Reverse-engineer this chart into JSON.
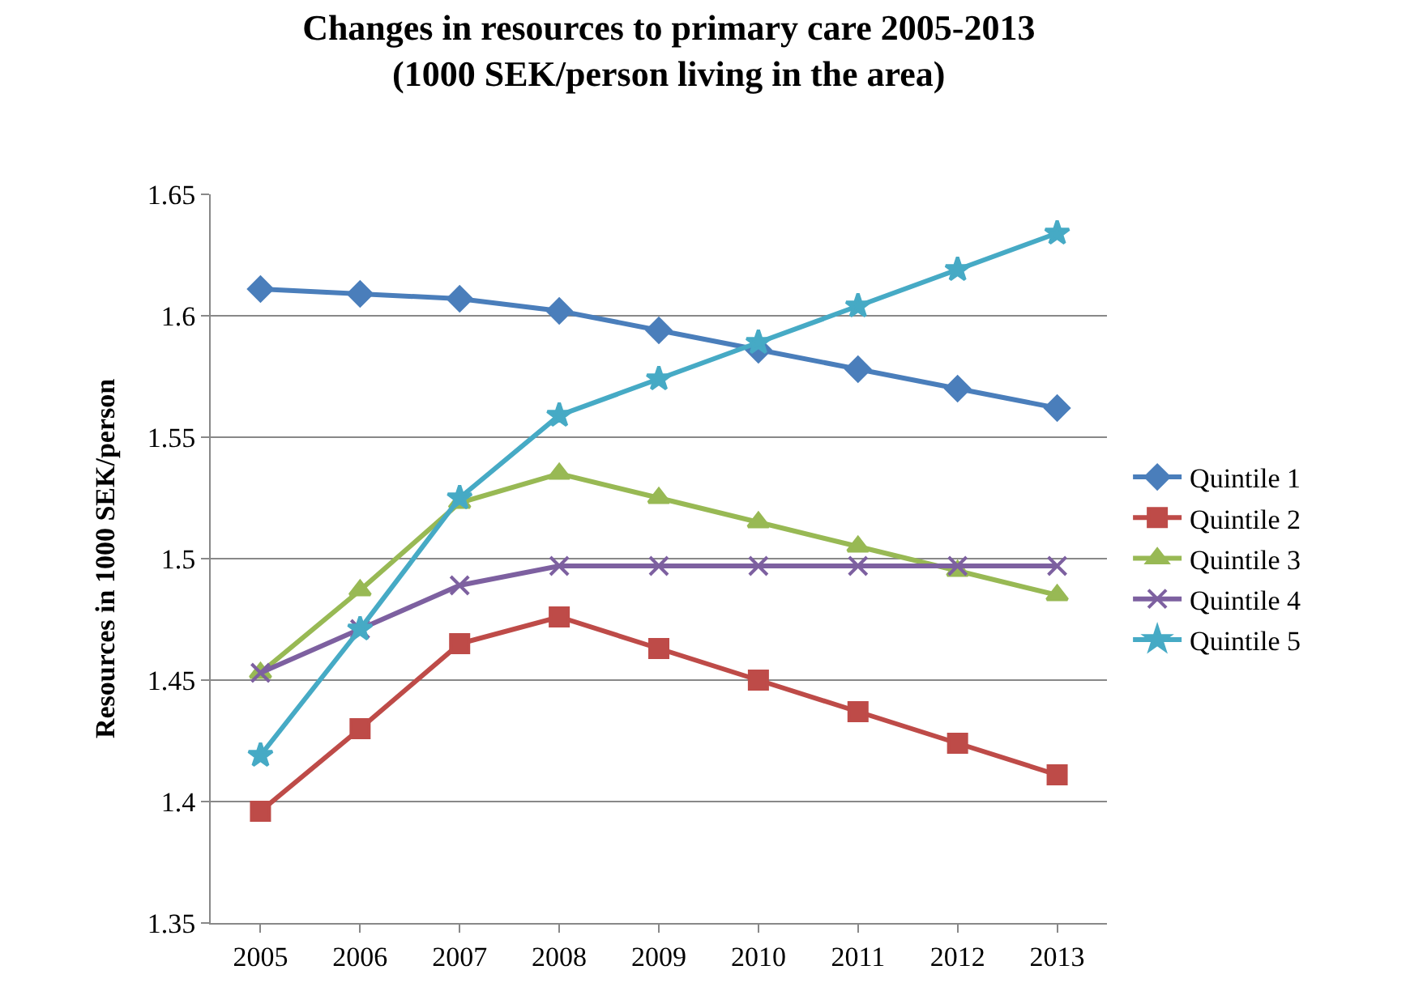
{
  "chart_data": {
    "type": "line",
    "title": "Changes in resources to primary care 2005-2013\n(1000 SEK/person living in the area)",
    "ylabel": "Resources in 1000 SEK/person",
    "categories": [
      "2005",
      "2006",
      "2007",
      "2008",
      "2009",
      "2010",
      "2011",
      "2012",
      "2013"
    ],
    "series": [
      {
        "name": "Quintile 1",
        "color": "#4a7ebb",
        "marker": "diamond",
        "values": [
          1.611,
          1.609,
          1.607,
          1.602,
          1.594,
          1.586,
          1.578,
          1.57,
          1.562
        ]
      },
      {
        "name": "Quintile 2",
        "color": "#be4b48",
        "marker": "square",
        "values": [
          1.396,
          1.43,
          1.465,
          1.476,
          1.463,
          1.45,
          1.437,
          1.424,
          1.411
        ]
      },
      {
        "name": "Quintile 3",
        "color": "#98b954",
        "marker": "triangle",
        "values": [
          1.453,
          1.487,
          1.523,
          1.535,
          1.525,
          1.515,
          1.505,
          1.495,
          1.485
        ]
      },
      {
        "name": "Quintile 4",
        "color": "#7d60a0",
        "marker": "cross",
        "values": [
          1.453,
          1.471,
          1.489,
          1.497,
          1.497,
          1.497,
          1.497,
          1.497,
          1.497
        ]
      },
      {
        "name": "Quintile 5",
        "color": "#46aac5",
        "marker": "star",
        "values": [
          1.419,
          1.471,
          1.525,
          1.559,
          1.574,
          1.589,
          1.604,
          1.619,
          1.634
        ]
      }
    ],
    "ylim": [
      1.35,
      1.65
    ],
    "yticks": [
      1.35,
      1.4,
      1.45,
      1.5,
      1.55,
      1.6,
      1.65
    ],
    "grid": "y",
    "legend": "right",
    "line_style": "solid"
  }
}
